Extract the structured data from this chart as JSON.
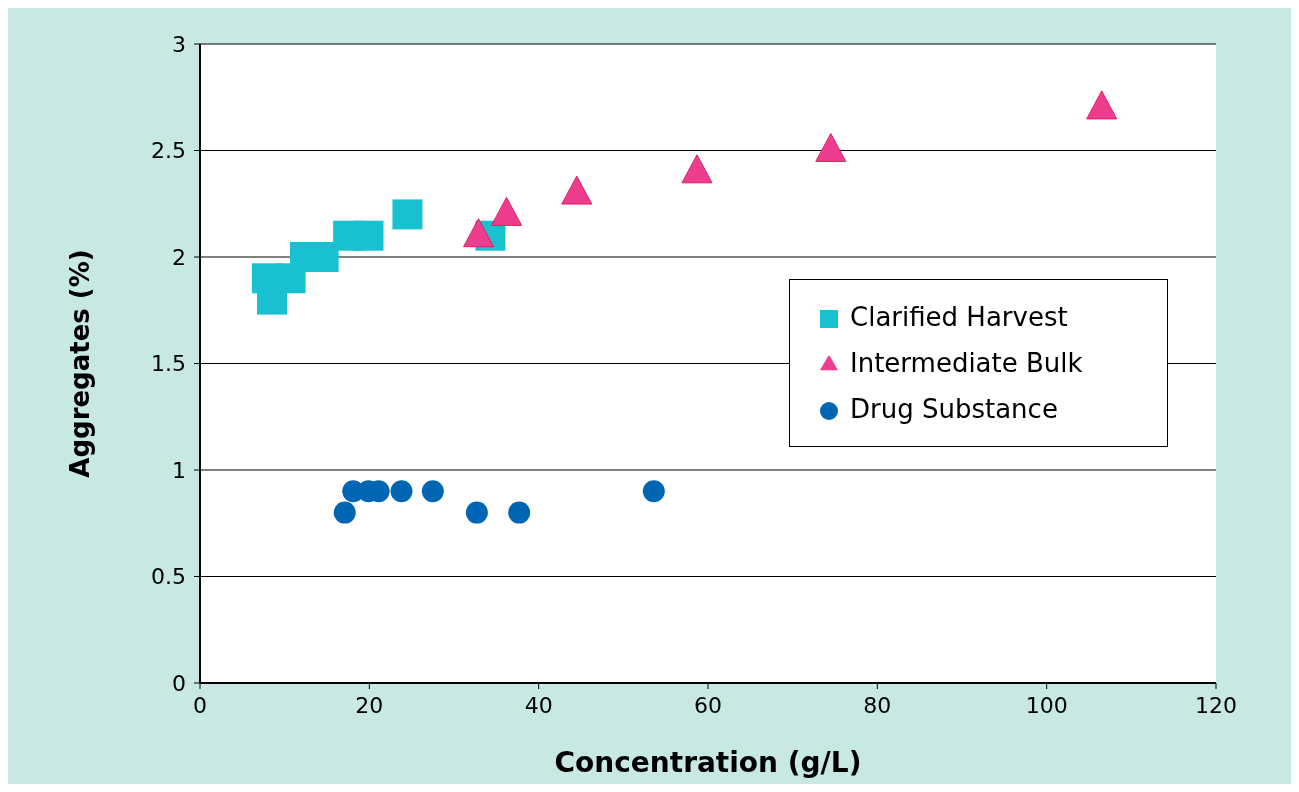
{
  "chart_data": {
    "type": "scatter",
    "xlabel": "Concentration (g/L)",
    "ylabel": "Aggregates (%)",
    "xlim": [
      0,
      120
    ],
    "xticks": [
      0,
      20,
      40,
      60,
      80,
      100,
      120
    ],
    "ylim": [
      0,
      3
    ],
    "yticks": [
      0,
      0.5,
      1,
      1.5,
      2,
      2.5,
      3
    ],
    "grid": "y",
    "legend": "right",
    "series": [
      {
        "name": "Clarified Harvest",
        "color": "#19c0d0",
        "marker": "square",
        "x": [
          8.5,
          7.9,
          10.7,
          12.4,
          14.6,
          17.5,
          19.9,
          24.5,
          34.3
        ],
        "values": [
          1.8,
          1.9,
          1.9,
          2.0,
          2.0,
          2.1,
          2.1,
          2.2,
          2.1
        ]
      },
      {
        "name": "Intermediate Bulk",
        "color": "#ee3d8f",
        "marker": "triangle",
        "x": [
          32.9,
          36.2,
          44.5,
          58.7,
          74.5,
          106.5
        ],
        "values": [
          2.1,
          2.2,
          2.3,
          2.4,
          2.5,
          2.7
        ]
      },
      {
        "name": "Drug Substance",
        "color": "#0066b3",
        "marker": "circle",
        "x": [
          17.1,
          18.1,
          19.9,
          21.1,
          23.8,
          27.5,
          32.7,
          37.7,
          53.6
        ],
        "values": [
          0.8,
          0.9,
          0.9,
          0.9,
          0.9,
          0.9,
          0.8,
          0.8,
          0.9
        ]
      }
    ]
  }
}
